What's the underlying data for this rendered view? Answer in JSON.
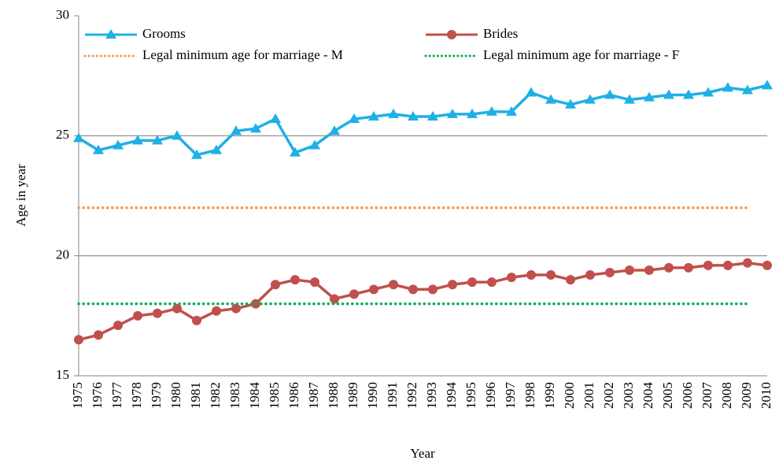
{
  "chart_data": {
    "type": "line",
    "x_label": "Year",
    "y_label": "Age in year",
    "categories": [
      "1975",
      "1976",
      "1977",
      "1978",
      "1979",
      "1980",
      "1981",
      "1982",
      "1983",
      "1984",
      "1985",
      "1986",
      "1987",
      "1988",
      "1989",
      "1990",
      "1991",
      "1992",
      "1993",
      "1994",
      "1995",
      "1996",
      "1997",
      "1998",
      "1999",
      "2000",
      "2001",
      "2002",
      "2003",
      "2004",
      "2005",
      "2006",
      "2007",
      "2008",
      "2009",
      "2010"
    ],
    "series": [
      {
        "name": "Grooms",
        "color": "#1fb0e6",
        "marker": "triangle",
        "dash": "solid",
        "values": [
          24.9,
          24.4,
          24.6,
          24.8,
          24.8,
          25.0,
          24.2,
          24.4,
          25.2,
          25.3,
          25.7,
          24.3,
          24.6,
          25.2,
          25.7,
          25.8,
          25.9,
          25.8,
          25.8,
          25.9,
          25.9,
          26.0,
          26.0,
          26.8,
          26.5,
          26.3,
          26.5,
          26.7,
          26.5,
          26.6,
          26.7,
          26.7,
          26.8,
          27.0,
          26.9,
          27.1
        ]
      },
      {
        "name": "Brides",
        "color": "#c0504d",
        "marker": "circle",
        "dash": "solid",
        "values": [
          16.5,
          16.7,
          17.1,
          17.5,
          17.6,
          17.8,
          17.3,
          17.7,
          17.8,
          18.0,
          18.8,
          19.0,
          18.9,
          18.2,
          18.4,
          18.6,
          18.8,
          18.6,
          18.6,
          18.8,
          18.9,
          18.9,
          19.1,
          19.2,
          19.2,
          19.0,
          19.2,
          19.3,
          19.4,
          19.4,
          19.5,
          19.5,
          19.6,
          19.6,
          19.7,
          19.6
        ]
      },
      {
        "name": "Legal minimum age for marriage - M",
        "color": "#f79646",
        "marker": "none",
        "dash": "dotted",
        "values": [
          22,
          22,
          22,
          22,
          22,
          22,
          22,
          22,
          22,
          22,
          22,
          22,
          22,
          22,
          22,
          22,
          22,
          22,
          22,
          22,
          22,
          22,
          22,
          22,
          22,
          22,
          22,
          22,
          22,
          22,
          22,
          22,
          22,
          22,
          22,
          null
        ]
      },
      {
        "name": "Legal minimum age for marriage - F",
        "color": "#00b050",
        "marker": "none",
        "dash": "dotted",
        "values": [
          18,
          18,
          18,
          18,
          18,
          18,
          18,
          18,
          18,
          18,
          18,
          18,
          18,
          18,
          18,
          18,
          18,
          18,
          18,
          18,
          18,
          18,
          18,
          18,
          18,
          18,
          18,
          18,
          18,
          18,
          18,
          18,
          18,
          18,
          18,
          null
        ]
      }
    ],
    "ylim": [
      15,
      30
    ],
    "yticks": [
      15,
      20,
      25,
      30
    ],
    "grid": true
  }
}
